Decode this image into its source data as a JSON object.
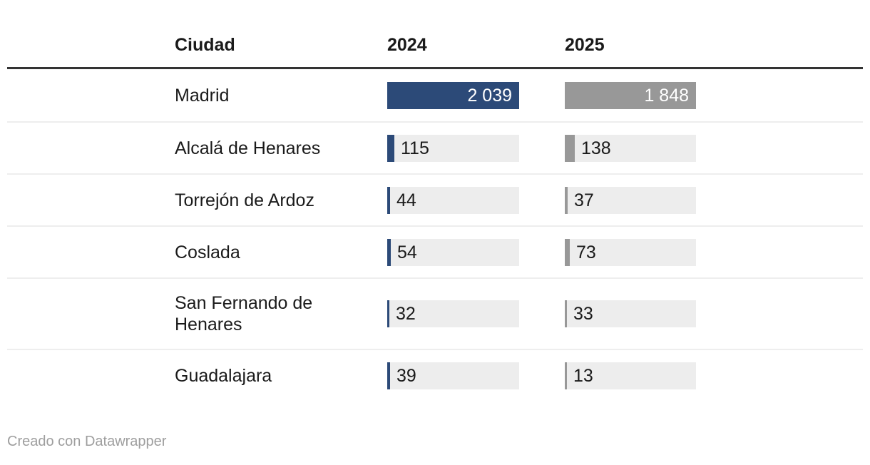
{
  "table": {
    "columns": [
      "Ciudad",
      "2024",
      "2025"
    ]
  },
  "chart_data": {
    "type": "bar",
    "layout": "table-with-inline-bar-columns",
    "title": "",
    "categories": [
      "Madrid",
      "Alcalá de Henares",
      "Torrejón de Ardoz",
      "Coslada",
      "San Fernando de Henares",
      "Guadalajara"
    ],
    "series": [
      {
        "name": "2024",
        "color": "#2c4a78",
        "values": [
          2039,
          115,
          44,
          54,
          32,
          39
        ],
        "labels": [
          "2 039",
          "115",
          "44",
          "54",
          "32",
          "39"
        ]
      },
      {
        "name": "2025",
        "color": "#989898",
        "values": [
          1848,
          138,
          37,
          73,
          33,
          13
        ],
        "labels": [
          "1 848",
          "138",
          "37",
          "73",
          "33",
          "13"
        ]
      }
    ],
    "scale_note": "each bar column is scaled to its own maximum value",
    "legend": "none",
    "grid": "off"
  },
  "footer": {
    "credit": "Creado con Datawrapper"
  },
  "colors": {
    "bar_2024": "#2c4a78",
    "bar_2025": "#989898",
    "bar_track": "#ededed",
    "header_rule": "#333333",
    "row_divider": "#eeeeee",
    "text": "#1a1a1a",
    "value_inside_text": "#ffffff",
    "credit_text": "#9e9e9e"
  }
}
